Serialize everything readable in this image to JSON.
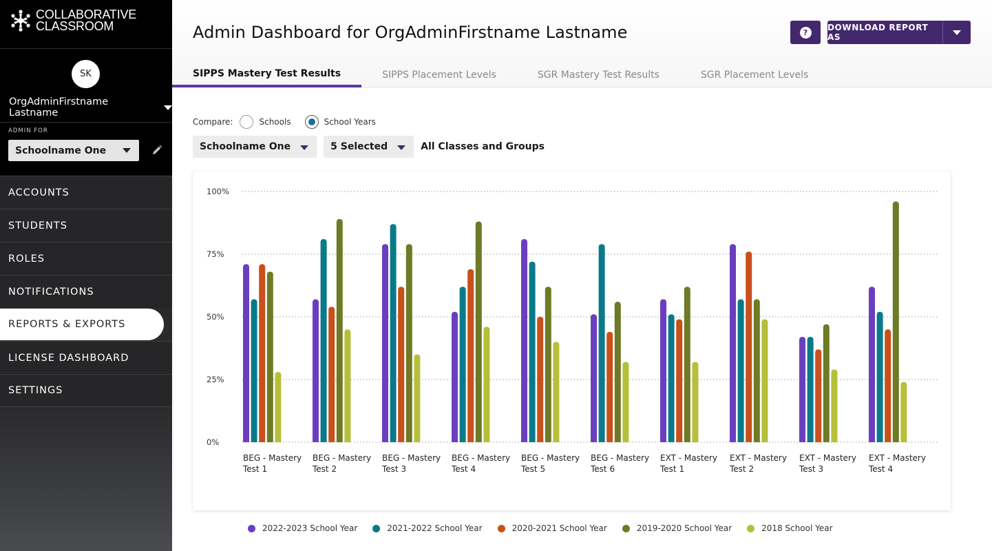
{
  "sidebar": {
    "logo_line1": "COLLABORATIVE",
    "logo_line2": "CLASSROOM",
    "avatar_initials": "SK",
    "user_name": "OrgAdminFirstname Lastname",
    "admin_for_label": "ADMIN FOR",
    "school_value": "Schoolname One",
    "nav": [
      {
        "label": "ACCOUNTS"
      },
      {
        "label": "STUDENTS"
      },
      {
        "label": "ROLES"
      },
      {
        "label": "NOTIFICATIONS"
      },
      {
        "label": "REPORTS & EXPORTS"
      },
      {
        "label": "LICENSE DASHBOARD"
      },
      {
        "label": "SETTINGS"
      }
    ],
    "active_index": 4
  },
  "header": {
    "title": "Admin Dashboard for OrgAdminFirstname Lastname",
    "help_label": "?",
    "download_label": "DOWNLOAD REPORT AS"
  },
  "tabs": [
    {
      "label": "SIPPS Mastery Test Results"
    },
    {
      "label": "SIPPS Placement Levels"
    },
    {
      "label": "SGR Mastery Test Results"
    },
    {
      "label": "SGR Placement Levels"
    }
  ],
  "controls": {
    "compare_label": "Compare:",
    "option_schools": "Schools",
    "option_years": "School Years",
    "selected_option": "School Years",
    "school_filter": "Schoolname One",
    "years_filter": "5 Selected",
    "groups_label": "All Classes and Groups"
  },
  "colors": {
    "accent": "#44286e",
    "tab_underline": "#5a38a0"
  },
  "chart_data": {
    "type": "bar",
    "categories": [
      [
        "BEG - Mastery",
        "Test 1"
      ],
      [
        "BEG - Mastery",
        "Test 2"
      ],
      [
        "BEG - Mastery",
        "Test 3"
      ],
      [
        "BEG - Mastery",
        "Test 4"
      ],
      [
        "BEG - Mastery",
        "Test 5"
      ],
      [
        "BEG - Mastery",
        "Test 6"
      ],
      [
        "EXT - Mastery",
        "Test 1"
      ],
      [
        "EXT - Mastery",
        "Test 2"
      ],
      [
        "EXT - Mastery",
        "Test 3"
      ],
      [
        "EXT - Mastery",
        "Test 4"
      ]
    ],
    "y_ticks": [
      "100%",
      "75%",
      "50%",
      "25%",
      "0%"
    ],
    "ylim": [
      0,
      100
    ],
    "grid": true,
    "legend_position": "bottom",
    "series": [
      {
        "name": "2022-2023 School Year",
        "color": "#6a3fbf",
        "values": [
          71,
          57,
          79,
          52,
          81,
          51,
          57,
          79,
          42,
          62
        ]
      },
      {
        "name": "2021-2022 School Year",
        "color": "#0a7a8a",
        "values": [
          57,
          81,
          87,
          62,
          72,
          79,
          51,
          57,
          42,
          52
        ]
      },
      {
        "name": "2020-2021 School Year",
        "color": "#c8501a",
        "values": [
          71,
          54,
          62,
          69,
          50,
          44,
          49,
          76,
          37,
          45
        ]
      },
      {
        "name": "2019-2020 School Year",
        "color": "#6e7a25",
        "values": [
          68,
          89,
          79,
          88,
          62,
          56,
          62,
          57,
          47,
          96
        ]
      },
      {
        "name": "2018 School Year",
        "color": "#b6bf3a",
        "values": [
          28,
          45,
          35,
          46,
          40,
          32,
          32,
          49,
          29,
          24
        ]
      }
    ]
  }
}
